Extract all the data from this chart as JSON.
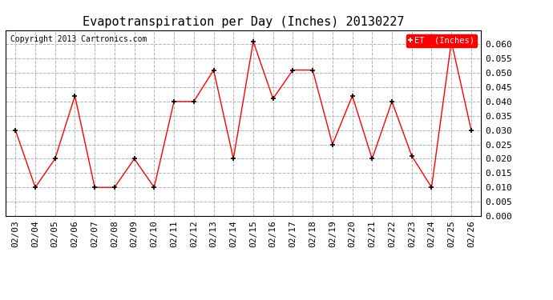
{
  "title": "Evapotranspiration per Day (Inches) 20130227",
  "copyright_text": "Copyright 2013 Cartronics.com",
  "legend_label": "ET  (Inches)",
  "dates": [
    "02/03",
    "02/04",
    "02/05",
    "02/06",
    "02/07",
    "02/08",
    "02/09",
    "02/10",
    "02/11",
    "02/12",
    "02/13",
    "02/14",
    "02/15",
    "02/16",
    "02/17",
    "02/18",
    "02/19",
    "02/20",
    "02/21",
    "02/22",
    "02/23",
    "02/24",
    "02/25",
    "02/26"
  ],
  "values": [
    0.03,
    0.01,
    0.02,
    0.042,
    0.01,
    0.01,
    0.02,
    0.01,
    0.04,
    0.04,
    0.051,
    0.02,
    0.061,
    0.041,
    0.051,
    0.051,
    0.025,
    0.042,
    0.02,
    0.04,
    0.021,
    0.01,
    0.061,
    0.03
  ],
  "ylim": [
    0.0,
    0.065
  ],
  "yticks": [
    0.0,
    0.005,
    0.01,
    0.015,
    0.02,
    0.025,
    0.03,
    0.035,
    0.04,
    0.045,
    0.05,
    0.055,
    0.06
  ],
  "line_color": "red",
  "marker_color": "black",
  "grid_color": "#aaaaaa",
  "background_color": "white",
  "title_fontsize": 11,
  "copyright_fontsize": 7,
  "tick_fontsize": 8,
  "legend_bg_color": "red",
  "legend_text_color": "white"
}
